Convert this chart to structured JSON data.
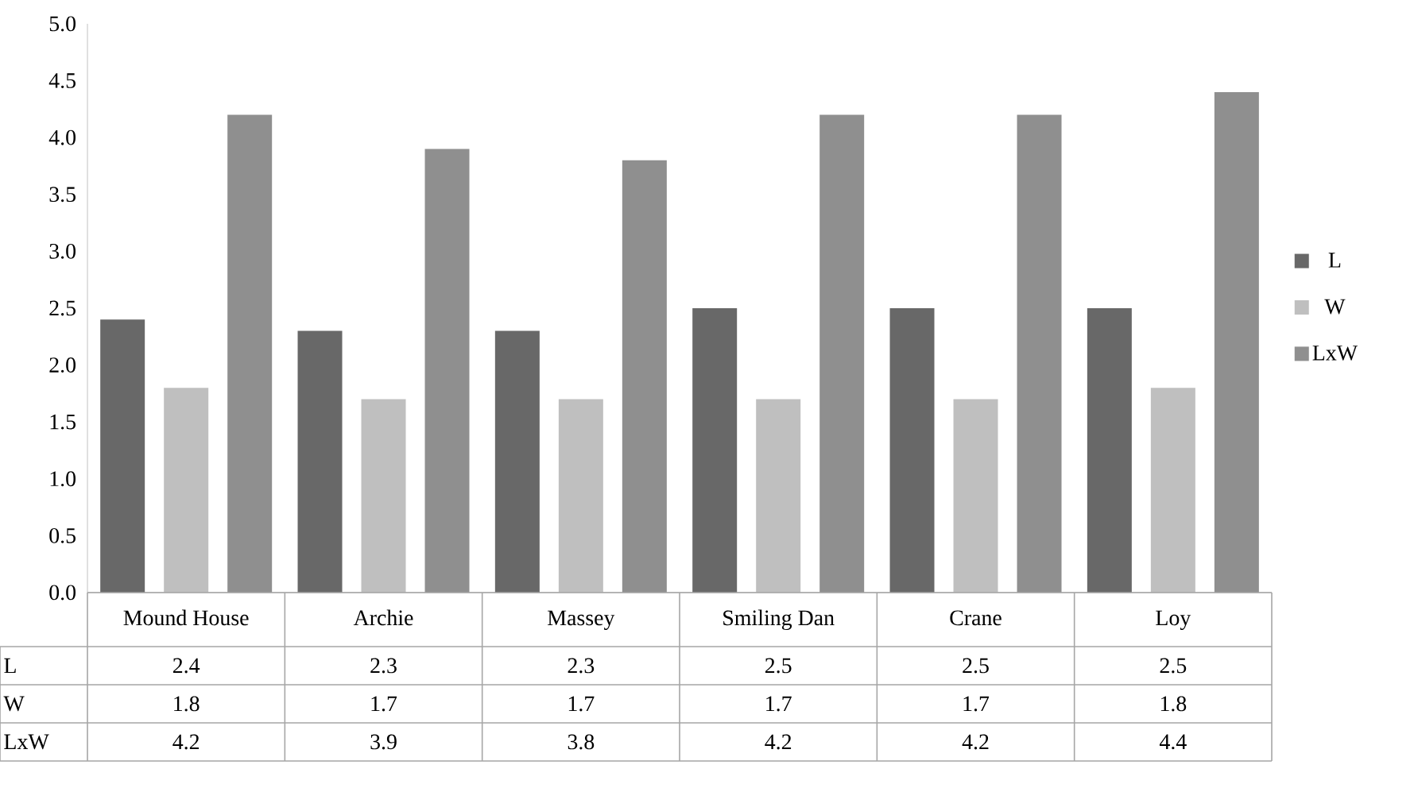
{
  "chart_data": {
    "type": "bar",
    "categories": [
      "Mound House",
      "Archie",
      "Massey",
      "Smiling Dan",
      "Crane",
      "Loy"
    ],
    "series": [
      {
        "name": "L",
        "color": "#686868",
        "values": [
          2.4,
          2.3,
          2.3,
          2.5,
          2.5,
          2.5
        ]
      },
      {
        "name": "W",
        "color": "#bfbfbf",
        "values": [
          1.8,
          1.7,
          1.7,
          1.7,
          1.7,
          1.8
        ]
      },
      {
        "name": "LxW",
        "color": "#8f8f8f",
        "values": [
          4.2,
          3.9,
          3.8,
          4.2,
          4.2,
          4.4
        ]
      }
    ],
    "ylim": [
      0,
      5
    ],
    "yticks": [
      {
        "value": 0,
        "label": "0.0"
      },
      {
        "value": 0.5,
        "label": "0.5"
      },
      {
        "value": 1,
        "label": "1.0"
      },
      {
        "value": 1.5,
        "label": "1.5"
      },
      {
        "value": 2,
        "label": "2.0"
      },
      {
        "value": 2.5,
        "label": "2.5"
      },
      {
        "value": 3,
        "label": "3.0"
      },
      {
        "value": 3.5,
        "label": "3.5"
      },
      {
        "value": 4,
        "label": "4.0"
      },
      {
        "value": 4.5,
        "label": "4.5"
      },
      {
        "value": 5,
        "label": "5.0"
      }
    ],
    "legend": "right",
    "data_labels": true
  }
}
